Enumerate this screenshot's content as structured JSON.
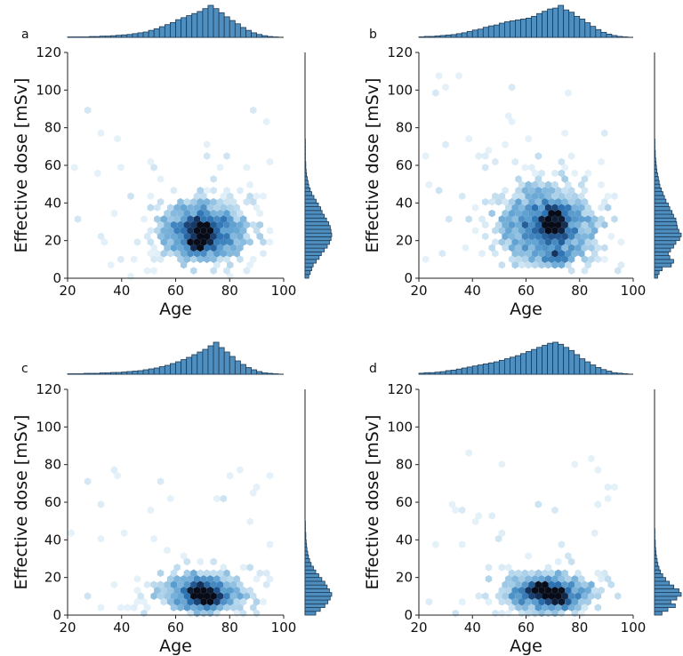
{
  "chart_data": [
    {
      "panel_label": "a",
      "type": "hexbin-jointplot",
      "xlabel": "Age",
      "ylabel": "Effective dose [mSv]",
      "xlim": [
        20,
        100
      ],
      "ylim": [
        0,
        120
      ],
      "xticks": [
        20,
        40,
        60,
        80,
        100
      ],
      "yticks": [
        0,
        20,
        40,
        60,
        80,
        100,
        120
      ],
      "density": {
        "x_center": 70,
        "x_sd": 12,
        "x_range": [
          20,
          95
        ],
        "y_center": 25,
        "y_sd": 12,
        "y_range": [
          0,
          90
        ],
        "hotspots": [
          [
            70,
            27
          ],
          [
            71,
            22
          ],
          [
            68,
            18
          ]
        ]
      },
      "marginal_x": {
        "bins": [
          20,
          22,
          24,
          26,
          28,
          30,
          32,
          34,
          36,
          38,
          40,
          42,
          44,
          46,
          48,
          50,
          52,
          54,
          56,
          58,
          60,
          62,
          64,
          66,
          68,
          70,
          72,
          74,
          76,
          78,
          80,
          82,
          84,
          86,
          88,
          90,
          92,
          94,
          96
        ],
        "counts": [
          1,
          1,
          1,
          1,
          2,
          2,
          3,
          3,
          4,
          5,
          6,
          7,
          9,
          11,
          13,
          17,
          21,
          26,
          31,
          36,
          43,
          48,
          53,
          58,
          63,
          70,
          78,
          70,
          60,
          50,
          41,
          33,
          24,
          17,
          11,
          7,
          4,
          2,
          1
        ]
      },
      "marginal_y": {
        "bins": [
          0,
          2,
          4,
          6,
          8,
          10,
          12,
          14,
          16,
          18,
          20,
          22,
          24,
          26,
          28,
          30,
          32,
          34,
          36,
          38,
          40,
          42,
          44,
          46,
          48,
          50,
          52,
          54,
          56,
          58,
          60,
          62,
          64,
          66,
          68,
          70,
          72
        ],
        "counts": [
          10,
          14,
          18,
          22,
          30,
          38,
          44,
          52,
          60,
          66,
          70,
          72,
          70,
          68,
          64,
          58,
          52,
          46,
          42,
          36,
          30,
          24,
          18,
          14,
          10,
          8,
          6,
          4,
          3,
          2,
          2,
          1,
          1,
          1,
          1,
          1,
          1
        ]
      }
    },
    {
      "panel_label": "b",
      "type": "hexbin-jointplot",
      "xlabel": "Age",
      "ylabel": "Effective dose [mSv]",
      "xlim": [
        20,
        100
      ],
      "ylim": [
        0,
        120
      ],
      "xticks": [
        20,
        40,
        60,
        80,
        100
      ],
      "yticks": [
        0,
        20,
        40,
        60,
        80,
        100,
        120
      ],
      "density": {
        "x_center": 68,
        "x_sd": 13,
        "x_range": [
          20,
          96
        ],
        "y_center": 28,
        "y_sd": 15,
        "y_range": [
          2,
          110
        ],
        "hotspots": [
          [
            71,
            33
          ],
          [
            71,
            11
          ],
          [
            69,
            25
          ]
        ]
      },
      "marginal_x": {
        "bins": [
          20,
          22,
          24,
          26,
          28,
          30,
          32,
          34,
          36,
          38,
          40,
          42,
          44,
          46,
          48,
          50,
          52,
          54,
          56,
          58,
          60,
          62,
          64,
          66,
          68,
          70,
          72,
          74,
          76,
          78,
          80,
          82,
          84,
          86,
          88,
          90,
          92,
          94,
          96
        ],
        "counts": [
          1,
          2,
          2,
          3,
          4,
          5,
          6,
          8,
          10,
          13,
          16,
          18,
          22,
          25,
          27,
          31,
          34,
          36,
          38,
          40,
          42,
          46,
          52,
          57,
          62,
          64,
          70,
          60,
          55,
          46,
          40,
          32,
          24,
          17,
          11,
          7,
          4,
          2,
          1
        ]
      },
      "marginal_y": {
        "bins": [
          0,
          2,
          4,
          6,
          8,
          10,
          12,
          14,
          16,
          18,
          20,
          22,
          24,
          26,
          28,
          30,
          32,
          34,
          36,
          38,
          40,
          42,
          44,
          46,
          48,
          50,
          52,
          54,
          56,
          58,
          60,
          62,
          64,
          66,
          68,
          70,
          72
        ],
        "counts": [
          8,
          12,
          20,
          44,
          50,
          40,
          36,
          42,
          50,
          56,
          66,
          70,
          64,
          60,
          58,
          56,
          50,
          46,
          40,
          36,
          30,
          26,
          22,
          18,
          14,
          12,
          10,
          8,
          6,
          5,
          4,
          3,
          2,
          2,
          1,
          1,
          1
        ]
      }
    },
    {
      "panel_label": "c",
      "type": "hexbin-jointplot",
      "xlabel": "Age",
      "ylabel": "Effective dose [mSv]",
      "xlim": [
        20,
        100
      ],
      "ylim": [
        0,
        120
      ],
      "xticks": [
        20,
        40,
        60,
        80,
        100
      ],
      "yticks": [
        0,
        20,
        40,
        60,
        80,
        100,
        120
      ],
      "density": {
        "x_center": 70,
        "x_sd": 12,
        "x_range": [
          20,
          95
        ],
        "y_center": 12,
        "y_sd": 8,
        "y_range": [
          0,
          80
        ],
        "hotspots": [
          [
            71,
            10
          ],
          [
            73,
            7
          ],
          [
            68,
            13
          ]
        ]
      },
      "marginal_x": {
        "bins": [
          20,
          22,
          24,
          26,
          28,
          30,
          32,
          34,
          36,
          38,
          40,
          42,
          44,
          46,
          48,
          50,
          52,
          54,
          56,
          58,
          60,
          62,
          64,
          66,
          68,
          70,
          72,
          74,
          76,
          78,
          80,
          82,
          84,
          86,
          88,
          90,
          92,
          94,
          96
        ],
        "counts": [
          1,
          1,
          1,
          2,
          2,
          2,
          3,
          3,
          4,
          4,
          5,
          6,
          7,
          8,
          10,
          12,
          14,
          17,
          20,
          24,
          28,
          33,
          38,
          44,
          50,
          56,
          64,
          72,
          60,
          50,
          40,
          30,
          22,
          15,
          10,
          6,
          3,
          2,
          1
        ]
      },
      "marginal_y": {
        "bins": [
          0,
          2,
          4,
          6,
          8,
          10,
          12,
          14,
          16,
          18,
          20,
          22,
          24,
          26,
          28,
          30,
          32,
          34,
          36,
          38,
          40,
          42,
          44,
          46,
          48
        ],
        "counts": [
          28,
          40,
          52,
          60,
          66,
          70,
          64,
          58,
          52,
          44,
          36,
          28,
          22,
          16,
          12,
          9,
          7,
          5,
          4,
          3,
          2,
          2,
          1,
          1,
          1
        ]
      }
    },
    {
      "panel_label": "d",
      "type": "hexbin-jointplot",
      "xlabel": "Age",
      "ylabel": "Effective dose [mSv]",
      "xlim": [
        20,
        100
      ],
      "ylim": [
        0,
        120
      ],
      "xticks": [
        20,
        40,
        60,
        80,
        100
      ],
      "yticks": [
        0,
        20,
        40,
        60,
        80,
        100,
        120
      ],
      "density": {
        "x_center": 68,
        "x_sd": 13,
        "x_range": [
          20,
          96
        ],
        "y_center": 12,
        "y_sd": 8,
        "y_range": [
          0,
          88
        ],
        "hotspots": [
          [
            68,
            12
          ],
          [
            72,
            8
          ],
          [
            64,
            14
          ]
        ]
      },
      "marginal_x": {
        "bins": [
          20,
          22,
          24,
          26,
          28,
          30,
          32,
          34,
          36,
          38,
          40,
          42,
          44,
          46,
          48,
          50,
          52,
          54,
          56,
          58,
          60,
          62,
          64,
          66,
          68,
          70,
          72,
          74,
          76,
          78,
          80,
          82,
          84,
          86,
          88,
          90,
          92,
          94,
          96
        ],
        "counts": [
          2,
          3,
          3,
          4,
          5,
          7,
          8,
          10,
          12,
          14,
          16,
          18,
          20,
          22,
          24,
          27,
          30,
          33,
          36,
          40,
          44,
          48,
          52,
          56,
          60,
          62,
          58,
          52,
          46,
          38,
          30,
          24,
          18,
          13,
          9,
          6,
          3,
          2,
          1
        ]
      },
      "marginal_y": {
        "bins": [
          0,
          2,
          4,
          6,
          8,
          10,
          12,
          14,
          16,
          18,
          20,
          22,
          24,
          26,
          28,
          30,
          32,
          34,
          36,
          38,
          40,
          42,
          44
        ],
        "counts": [
          20,
          36,
          56,
          44,
          60,
          72,
          66,
          52,
          40,
          30,
          22,
          16,
          12,
          9,
          7,
          5,
          4,
          3,
          2,
          2,
          1,
          1,
          1
        ]
      }
    }
  ]
}
